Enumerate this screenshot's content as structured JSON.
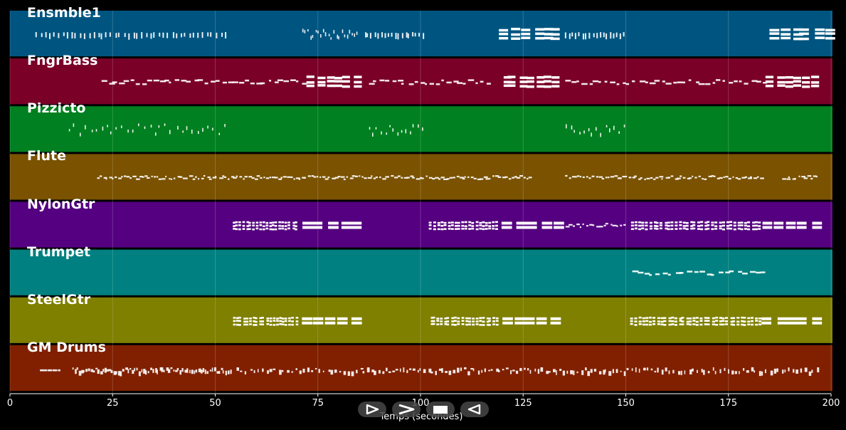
{
  "chart_data": {
    "type": "piano-roll",
    "x_axis": {
      "label": "Temps (secondes)",
      "min": 0,
      "max": 200,
      "ticks": [
        0,
        25,
        50,
        75,
        100,
        125,
        150,
        175,
        200
      ],
      "tick_labels": [
        "0",
        "25",
        "50",
        "75",
        "100",
        "125",
        "150",
        "175",
        "200"
      ]
    },
    "grid": true,
    "tracks": [
      {
        "name": "Ensmble1",
        "color": "#005580",
        "segments": [
          {
            "start": 6,
            "end": 53,
            "style": "short",
            "density": 44
          },
          {
            "start": 71,
            "end": 85,
            "style": "dots",
            "density": 22
          },
          {
            "start": 86,
            "end": 101,
            "style": "short",
            "density": 18
          },
          {
            "start": 119,
            "end": 134,
            "style": "long",
            "density": 6
          },
          {
            "start": 135,
            "end": 150,
            "style": "short",
            "density": 18
          },
          {
            "start": 184,
            "end": 200,
            "style": "long",
            "density": 6
          }
        ]
      },
      {
        "name": "FngrBass",
        "color": "#7a0028",
        "segments": [
          {
            "start": 22,
            "end": 72,
            "style": "bass",
            "density": 36
          },
          {
            "start": 72,
            "end": 85,
            "style": "long",
            "density": 6
          },
          {
            "start": 87,
            "end": 117,
            "style": "bass",
            "density": 22
          },
          {
            "start": 119,
            "end": 134,
            "style": "long",
            "density": 7
          },
          {
            "start": 135,
            "end": 184,
            "style": "bass",
            "density": 36
          },
          {
            "start": 184,
            "end": 197,
            "style": "long",
            "density": 6
          }
        ]
      },
      {
        "name": "Pizzicto",
        "color": "#008020",
        "segments": [
          {
            "start": 14,
            "end": 53,
            "style": "dots",
            "density": 30
          },
          {
            "start": 87,
            "end": 101,
            "style": "dots",
            "density": 14
          },
          {
            "start": 135,
            "end": 150,
            "style": "dots",
            "density": 14
          }
        ]
      },
      {
        "name": "Flute",
        "color": "#7a5200",
        "segments": [
          {
            "start": 21,
            "end": 86,
            "style": "melody",
            "density": 90
          },
          {
            "start": 86,
            "end": 127,
            "style": "melody",
            "density": 55
          },
          {
            "start": 135,
            "end": 183,
            "style": "melody",
            "density": 65
          },
          {
            "start": 188,
            "end": 197,
            "style": "melody",
            "density": 12
          }
        ]
      },
      {
        "name": "NylonGtr",
        "color": "#550080",
        "segments": [
          {
            "start": 54,
            "end": 70,
            "style": "chords",
            "density": 20
          },
          {
            "start": 70,
            "end": 85,
            "style": "blocks",
            "density": 5
          },
          {
            "start": 102,
            "end": 119,
            "style": "chords",
            "density": 20
          },
          {
            "start": 119,
            "end": 134,
            "style": "blocks",
            "density": 5
          },
          {
            "start": 135,
            "end": 150,
            "style": "melody",
            "density": 18
          },
          {
            "start": 151,
            "end": 183,
            "style": "chords",
            "density": 36
          },
          {
            "start": 183,
            "end": 197,
            "style": "blocks",
            "density": 5
          }
        ]
      },
      {
        "name": "Trumpet",
        "color": "#008080",
        "segments": [
          {
            "start": 151,
            "end": 184,
            "style": "bass",
            "density": 22
          }
        ]
      },
      {
        "name": "SteelGtr",
        "color": "#7f7f00",
        "segments": [
          {
            "start": 54,
            "end": 70,
            "style": "chords",
            "density": 20
          },
          {
            "start": 70,
            "end": 85,
            "style": "blocks",
            "density": 5
          },
          {
            "start": 102,
            "end": 119,
            "style": "chords",
            "density": 20
          },
          {
            "start": 119,
            "end": 134,
            "style": "blocks",
            "density": 5
          },
          {
            "start": 151,
            "end": 183,
            "style": "chords",
            "density": 36
          },
          {
            "start": 183,
            "end": 197,
            "style": "blocks",
            "density": 5
          }
        ]
      },
      {
        "name": "GM Drums",
        "color": "#802000",
        "segments": [
          {
            "start": 7,
            "end": 12,
            "style": "drumline",
            "density": 8
          },
          {
            "start": 15,
            "end": 54,
            "style": "drums",
            "density": 70
          },
          {
            "start": 55,
            "end": 85,
            "style": "drums",
            "density": 30
          },
          {
            "start": 85,
            "end": 150,
            "style": "drums",
            "density": 75
          },
          {
            "start": 150,
            "end": 197,
            "style": "drums",
            "density": 50
          }
        ]
      }
    ]
  },
  "controls": {
    "play_icon": "play-forward-icon",
    "fast_forward_icon": "fast-forward-icon",
    "stop_icon": "stop-icon",
    "rewind_icon": "play-backward-icon"
  }
}
